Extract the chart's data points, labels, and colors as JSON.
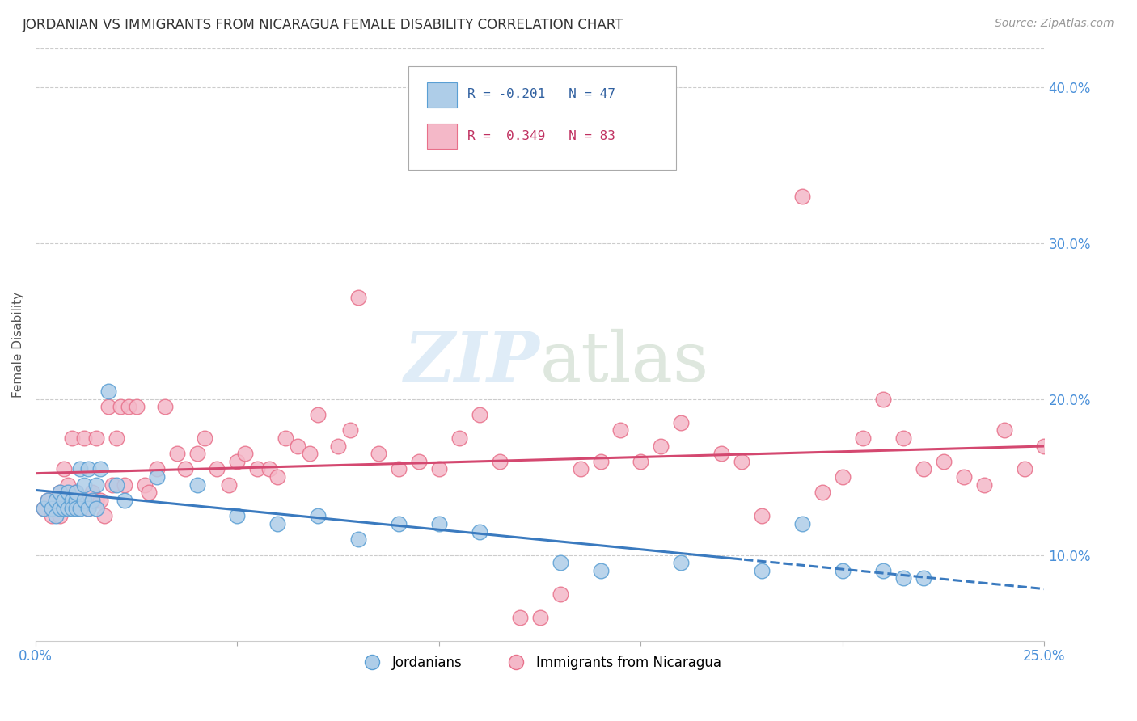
{
  "title": "JORDANIAN VS IMMIGRANTS FROM NICARAGUA FEMALE DISABILITY CORRELATION CHART",
  "source": "Source: ZipAtlas.com",
  "ylabel": "Female Disability",
  "xlim": [
    0.0,
    0.25
  ],
  "ylim": [
    0.045,
    0.425
  ],
  "xticks": [
    0.0,
    0.05,
    0.1,
    0.15,
    0.2,
    0.25
  ],
  "yticks": [
    0.1,
    0.2,
    0.3,
    0.4
  ],
  "ytick_labels": [
    "10.0%",
    "20.0%",
    "30.0%",
    "40.0%"
  ],
  "xtick_labels": [
    "0.0%",
    "",
    "",
    "",
    "",
    "25.0%"
  ],
  "legend_blue_label": "R = -0.201   N = 47",
  "legend_pink_label": "R =  0.349   N = 83",
  "bottom_legend_blue": "Jordanians",
  "bottom_legend_pink": "Immigrants from Nicaragua",
  "blue_color": "#aecde8",
  "pink_color": "#f4b8c8",
  "blue_edge_color": "#5a9fd4",
  "pink_edge_color": "#e8708a",
  "blue_line_color": "#3a7abf",
  "pink_line_color": "#d44870",
  "background_color": "#ffffff",
  "grid_color": "#cccccc",
  "blue_x": [
    0.002,
    0.003,
    0.004,
    0.005,
    0.005,
    0.006,
    0.006,
    0.007,
    0.007,
    0.008,
    0.008,
    0.009,
    0.009,
    0.01,
    0.01,
    0.01,
    0.011,
    0.011,
    0.012,
    0.012,
    0.013,
    0.013,
    0.014,
    0.015,
    0.015,
    0.016,
    0.018,
    0.02,
    0.022,
    0.03,
    0.04,
    0.05,
    0.06,
    0.07,
    0.08,
    0.09,
    0.1,
    0.11,
    0.13,
    0.14,
    0.16,
    0.18,
    0.19,
    0.2,
    0.21,
    0.215,
    0.22
  ],
  "blue_y": [
    0.13,
    0.135,
    0.13,
    0.135,
    0.125,
    0.13,
    0.14,
    0.13,
    0.135,
    0.13,
    0.14,
    0.135,
    0.13,
    0.135,
    0.13,
    0.14,
    0.13,
    0.155,
    0.135,
    0.145,
    0.13,
    0.155,
    0.135,
    0.145,
    0.13,
    0.155,
    0.205,
    0.145,
    0.135,
    0.15,
    0.145,
    0.125,
    0.12,
    0.125,
    0.11,
    0.12,
    0.12,
    0.115,
    0.095,
    0.09,
    0.095,
    0.09,
    0.12,
    0.09,
    0.09,
    0.085,
    0.085
  ],
  "pink_x": [
    0.002,
    0.003,
    0.004,
    0.005,
    0.006,
    0.006,
    0.007,
    0.007,
    0.008,
    0.008,
    0.009,
    0.01,
    0.01,
    0.011,
    0.012,
    0.013,
    0.014,
    0.015,
    0.015,
    0.016,
    0.017,
    0.018,
    0.019,
    0.02,
    0.021,
    0.022,
    0.023,
    0.025,
    0.027,
    0.028,
    0.03,
    0.032,
    0.035,
    0.037,
    0.04,
    0.042,
    0.045,
    0.048,
    0.05,
    0.052,
    0.055,
    0.058,
    0.06,
    0.062,
    0.065,
    0.068,
    0.07,
    0.075,
    0.078,
    0.08,
    0.085,
    0.09,
    0.095,
    0.1,
    0.105,
    0.11,
    0.115,
    0.12,
    0.125,
    0.13,
    0.135,
    0.14,
    0.145,
    0.15,
    0.155,
    0.16,
    0.17,
    0.175,
    0.18,
    0.19,
    0.195,
    0.2,
    0.205,
    0.21,
    0.215,
    0.22,
    0.225,
    0.23,
    0.235,
    0.24,
    0.245,
    0.25,
    0.255
  ],
  "pink_y": [
    0.13,
    0.135,
    0.125,
    0.13,
    0.125,
    0.14,
    0.13,
    0.155,
    0.13,
    0.145,
    0.175,
    0.13,
    0.14,
    0.135,
    0.175,
    0.13,
    0.14,
    0.135,
    0.175,
    0.135,
    0.125,
    0.195,
    0.145,
    0.175,
    0.195,
    0.145,
    0.195,
    0.195,
    0.145,
    0.14,
    0.155,
    0.195,
    0.165,
    0.155,
    0.165,
    0.175,
    0.155,
    0.145,
    0.16,
    0.165,
    0.155,
    0.155,
    0.15,
    0.175,
    0.17,
    0.165,
    0.19,
    0.17,
    0.18,
    0.265,
    0.165,
    0.155,
    0.16,
    0.155,
    0.175,
    0.19,
    0.16,
    0.06,
    0.06,
    0.075,
    0.155,
    0.16,
    0.18,
    0.16,
    0.17,
    0.185,
    0.165,
    0.16,
    0.125,
    0.33,
    0.14,
    0.15,
    0.175,
    0.2,
    0.175,
    0.155,
    0.16,
    0.15,
    0.145,
    0.18,
    0.155,
    0.17,
    0.155
  ]
}
